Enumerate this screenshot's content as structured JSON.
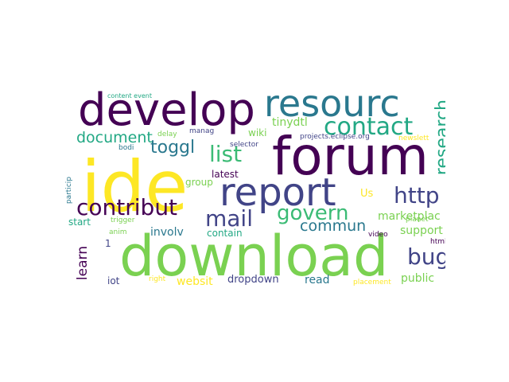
{
  "colors": {
    "yellow": "#fde725",
    "lightgreen": "#7ad151",
    "green": "#22a884",
    "teal": "#2a788e",
    "blue": "#414487",
    "purple": "#440154",
    "mint": "#3bbb75"
  },
  "words": [
    {
      "text": "download"
    },
    {
      "text": "forum"
    },
    {
      "text": "ide"
    },
    {
      "text": "develop"
    },
    {
      "text": "resourc"
    },
    {
      "text": "report"
    },
    {
      "text": "contact"
    },
    {
      "text": "research"
    },
    {
      "text": "http"
    },
    {
      "text": "contribut"
    },
    {
      "text": "mail"
    },
    {
      "text": "govern"
    },
    {
      "text": "list"
    },
    {
      "text": "toggl"
    },
    {
      "text": "document"
    },
    {
      "text": "bug"
    },
    {
      "text": "commun"
    },
    {
      "text": "learn"
    },
    {
      "text": "marketplac"
    },
    {
      "text": "support"
    },
    {
      "text": "public"
    },
    {
      "text": "tinydtl"
    },
    {
      "text": "wiki"
    },
    {
      "text": "latest"
    },
    {
      "text": "group"
    },
    {
      "text": "involv"
    },
    {
      "text": "contain"
    },
    {
      "text": "start"
    },
    {
      "text": "websit"
    },
    {
      "text": "dropdown"
    },
    {
      "text": "read"
    },
    {
      "text": "iot"
    },
    {
      "text": "Us"
    },
    {
      "text": "content event"
    },
    {
      "text": "delay"
    },
    {
      "text": "manag"
    },
    {
      "text": "selector"
    },
    {
      "text": "projects.eclipse.org"
    },
    {
      "text": "newslett"
    },
    {
      "text": "bodi"
    },
    {
      "text": "particip"
    },
    {
      "text": "trigger"
    },
    {
      "text": "anim"
    },
    {
      "text": "planet"
    },
    {
      "text": "html"
    },
    {
      "text": "video"
    },
    {
      "text": "right"
    },
    {
      "text": "placement"
    },
    {
      "text": "1"
    }
  ]
}
